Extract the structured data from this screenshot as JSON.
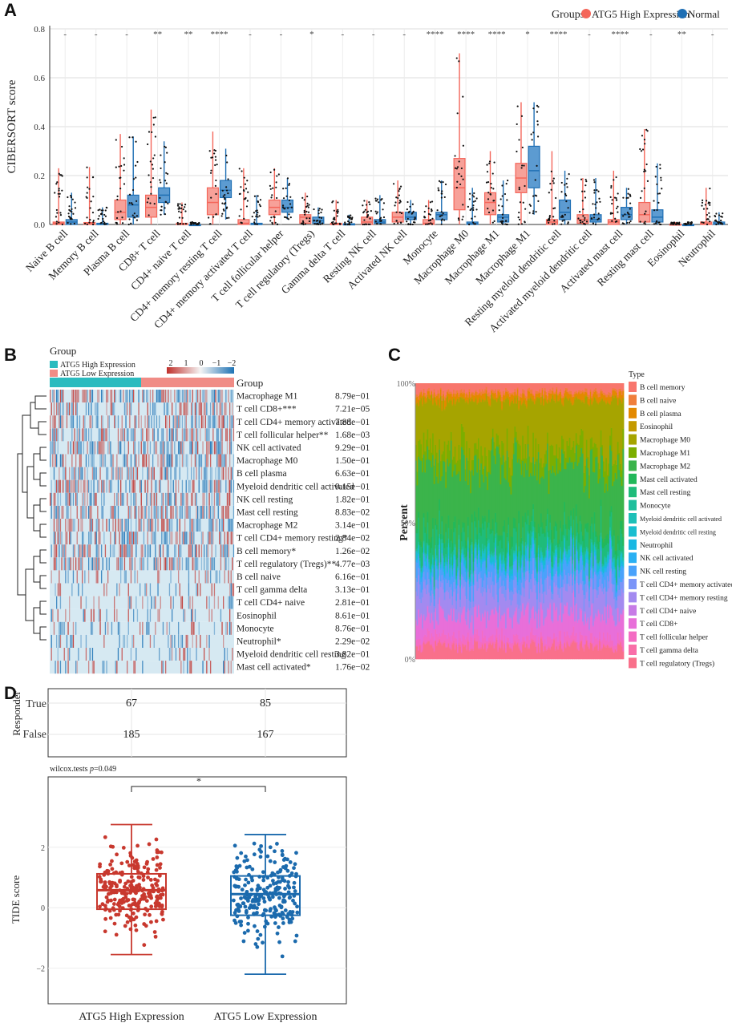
{
  "panels": {
    "A": "A",
    "B": "B",
    "C": "C",
    "D": "D"
  },
  "panel_a": {
    "ylabel": "CIBERSORT score",
    "legend_title": "Groups",
    "legend_high": "ATG5 High Expression",
    "legend_normal": "Normal",
    "colors": {
      "high": "#f4665a",
      "normal": "#1f6fb4"
    }
  },
  "panel_b": {
    "group_title": "Group",
    "legend_high": "ATG5 High Expression",
    "legend_low": "ATG5 Low Expression",
    "group_label": "Group",
    "scale_ticks": [
      "2",
      "1",
      "0",
      "−1",
      "−2"
    ],
    "colors": {
      "high": "#2bbbbf",
      "low": "#f08c86",
      "red": "#c0302b",
      "blue": "#1e73b5",
      "base": "#d6e9f2"
    }
  },
  "panel_c": {
    "ylabel": "Percent",
    "ticks": [
      "100%",
      "50%",
      "0%"
    ],
    "legend_title": "Type"
  },
  "panel_d": {
    "ylabel_top": "Responder",
    "row_true": "True",
    "row_false": "False",
    "test_label_prefix": "wilcox.tests ",
    "test_label_p": "p",
    "test_label_value": "=0.049",
    "signif": "*",
    "ylabel_bottom": "TIDE score",
    "colors": {
      "high": "#c8382e",
      "low": "#1b6aad"
    }
  },
  "chart_data": [
    {
      "type": "boxplot",
      "panel": "A",
      "title": "",
      "xlabel": "",
      "ylabel": "CIBERSORT score",
      "ylim": [
        0,
        0.8
      ],
      "yticks": [
        "0.0",
        "0.2",
        "0.4",
        "0.6",
        "0.8"
      ],
      "legend": "top-right",
      "categories": [
        "Naive B cell",
        "Memory B cell",
        "Plasma B cell",
        "CD8+ T cell",
        "CD4+ naive T cell",
        "CD4+ memory resting T cell",
        "CD4+ memory activated T cell",
        "T cell follicular helper",
        "T cell regulatory (Tregs)",
        "Gamma delta T cell",
        "Resting NK cell",
        "Activated NK cell",
        "Monocyte",
        "Macrophage M0",
        "Macrophage M1",
        "Macrophage M1",
        "Resting myeloid dendritic cell",
        "Activated myeloid dendritic cell",
        "Activated mast cell",
        "Resting mast cell",
        "Eosinophil",
        "Neutrophil"
      ],
      "significance": [
        "-",
        "-",
        "-",
        "**",
        "**",
        "****",
        "-",
        "-",
        "*",
        "-",
        "-",
        "-",
        "****",
        "****",
        "****",
        "*",
        "****",
        "-",
        "****",
        "-",
        "**",
        "-"
      ],
      "series": [
        {
          "name": "ATG5 High Expression",
          "stats": [
            [
              0,
              0,
              0.005,
              0.01,
              0.23
            ],
            [
              0,
              0,
              0.003,
              0.008,
              0.235
            ],
            [
              0,
              0.02,
              0.05,
              0.1,
              0.37
            ],
            [
              0,
              0.03,
              0.07,
              0.12,
              0.47
            ],
            [
              0,
              0,
              0,
              0.005,
              0.09
            ],
            [
              0,
              0.04,
              0.09,
              0.15,
              0.38
            ],
            [
              0,
              0,
              0.005,
              0.02,
              0.23
            ],
            [
              0,
              0.04,
              0.07,
              0.1,
              0.23
            ],
            [
              0,
              0.005,
              0.03,
              0.04,
              0.13
            ],
            [
              0,
              0,
              0,
              0.005,
              0.1
            ],
            [
              0,
              0,
              0.01,
              0.03,
              0.1
            ],
            [
              0,
              0.01,
              0.03,
              0.05,
              0.18
            ],
            [
              0,
              0,
              0.005,
              0.02,
              0.1
            ],
            [
              0,
              0.06,
              0.15,
              0.27,
              0.7
            ],
            [
              0,
              0.04,
              0.09,
              0.13,
              0.3
            ],
            [
              0,
              0.13,
              0.19,
              0.25,
              0.5
            ],
            [
              0,
              0,
              0.01,
              0.02,
              0.3
            ],
            [
              0,
              0.005,
              0.02,
              0.04,
              0.19
            ],
            [
              0,
              0,
              0.01,
              0.02,
              0.22
            ],
            [
              0,
              0.01,
              0.04,
              0.09,
              0.39
            ],
            [
              0,
              0,
              0,
              0.002,
              0.01
            ],
            [
              0,
              0,
              0.003,
              0.01,
              0.15
            ]
          ]
        },
        {
          "name": "Normal",
          "stats": [
            [
              0,
              0,
              0.01,
              0.02,
              0.13
            ],
            [
              0,
              0,
              0,
              0.005,
              0.07
            ],
            [
              0,
              0.03,
              0.08,
              0.12,
              0.36
            ],
            [
              0.04,
              0.09,
              0.12,
              0.15,
              0.34
            ],
            [
              0,
              0,
              0,
              0,
              0.01
            ],
            [
              0.02,
              0.11,
              0.14,
              0.18,
              0.31
            ],
            [
              0,
              0,
              0,
              0.005,
              0.12
            ],
            [
              0.02,
              0.05,
              0.07,
              0.1,
              0.19
            ],
            [
              0,
              0.005,
              0.015,
              0.03,
              0.07
            ],
            [
              0,
              0,
              0,
              0.003,
              0.04
            ],
            [
              0,
              0.005,
              0.01,
              0.02,
              0.12
            ],
            [
              0,
              0.02,
              0.03,
              0.05,
              0.1
            ],
            [
              0,
              0.02,
              0.04,
              0.05,
              0.18
            ],
            [
              0,
              0,
              0.003,
              0.01,
              0.15
            ],
            [
              0,
              0.01,
              0.03,
              0.04,
              0.18
            ],
            [
              0.04,
              0.15,
              0.22,
              0.32,
              0.5
            ],
            [
              0,
              0.02,
              0.05,
              0.1,
              0.22
            ],
            [
              0,
              0.01,
              0.02,
              0.04,
              0.19
            ],
            [
              0,
              0.02,
              0.04,
              0.07,
              0.15
            ],
            [
              0,
              0.01,
              0.03,
              0.06,
              0.25
            ],
            [
              0,
              0,
              0,
              0,
              0.01
            ],
            [
              0,
              0,
              0.003,
              0.01,
              0.05
            ]
          ]
        }
      ]
    },
    {
      "type": "heatmap",
      "panel": "B",
      "rows": [
        "Macrophage M1",
        "T cell CD8+***",
        "T cell CD4+ memory activated",
        "T cell follicular helper**",
        "NK cell activated",
        "Macrophage M0",
        "B cell plasma",
        "Myeloid dendritic cell activated",
        "NK cell resting",
        "Mast cell resting",
        "Macrophage M2",
        "T cell CD4+ memory resting*",
        "B cell memory*",
        "T cell regulatory (Tregs)**",
        "B cell naive",
        "T cell gamma delta",
        "T cell CD4+ naive",
        "Eosinophil",
        "Monocyte",
        "Neutrophil*",
        "Myeloid dendritic cell resting",
        "Mast cell activated*"
      ],
      "pvalues": [
        "8.79e−01",
        "7.21e−05",
        "7.88e−01",
        "1.68e−03",
        "9.29e−01",
        "1.50e−01",
        "6.63e−01",
        "9.15e−01",
        "1.82e−01",
        "8.83e−02",
        "3.14e−01",
        "2.84e−02",
        "1.26e−02",
        "4.77e−03",
        "6.16e−01",
        "3.13e−01",
        "2.81e−01",
        "8.61e−01",
        "8.76e−01",
        "2.29e−02",
        "3.82e−01",
        "1.76e−02"
      ],
      "groups": [
        "ATG5 High Expression",
        "ATG5 Low Expression"
      ],
      "scale_range": [
        -2,
        2
      ]
    },
    {
      "type": "area",
      "panel": "C",
      "ylabel": "Percent",
      "ylim": [
        0,
        100
      ],
      "legend": "right",
      "series_names": [
        "B cell memory",
        "B cell naive",
        "B cell plasma",
        "Eosinophil",
        "Macrophage M0",
        "Macrophage M1",
        "Macrophage M2",
        "Mast cell activated",
        "Mast cell resting",
        "Monocyte",
        "Myeloid dendritic cell activated",
        "Myeloid dendritic cell resting",
        "Neutrophil",
        "NK cell activated",
        "NK cell resting",
        "T cell CD4+ memory activated",
        "T cell CD4+ memory resting",
        "T cell CD4+ naive",
        "T cell CD8+",
        "T cell follicular helper",
        "T cell gamma delta",
        "T cell regulatory (Tregs)"
      ],
      "series_colors": [
        "#f8766d",
        "#f07f3c",
        "#e38900",
        "#c49a00",
        "#a6a400",
        "#7cae00",
        "#3bb44b",
        "#22b85a",
        "#1fbc7a",
        "#1fbf9c",
        "#1ec0b8",
        "#19bed0",
        "#19b8e3",
        "#2ab0f3",
        "#4aa2fb",
        "#7b95f8",
        "#a38af0",
        "#c77ce6",
        "#e86fd9",
        "#f46cc3",
        "#f96ea8",
        "#f9708b"
      ],
      "mean_percent": [
        3,
        1,
        2,
        0.5,
        18,
        6,
        22,
        3,
        6,
        1,
        0.5,
        2,
        0.5,
        1,
        5,
        4,
        8,
        0.5,
        8,
        3,
        0.5,
        4.5
      ]
    },
    {
      "type": "table",
      "panel": "D-top",
      "columns": [
        "ATG5 High Expression",
        "ATG5 Low Expression"
      ],
      "rows": [
        "True",
        "False"
      ],
      "values": [
        [
          67,
          85
        ],
        [
          185,
          167
        ]
      ]
    },
    {
      "type": "boxplot",
      "panel": "D-bottom",
      "ylabel": "TIDE score",
      "ylim": [
        -2.7,
        3.4
      ],
      "yticks": [
        "2",
        "0",
        "−2"
      ],
      "categories": [
        "ATG5 High Expression",
        "ATG5 Low Expression"
      ],
      "stats": [
        [
          -1.55,
          -0.05,
          0.58,
          1.12,
          2.75
        ],
        [
          -2.2,
          -0.25,
          0.45,
          1.05,
          2.42
        ]
      ],
      "test": "wilcox.tests p=0.049",
      "significance": "*"
    }
  ]
}
